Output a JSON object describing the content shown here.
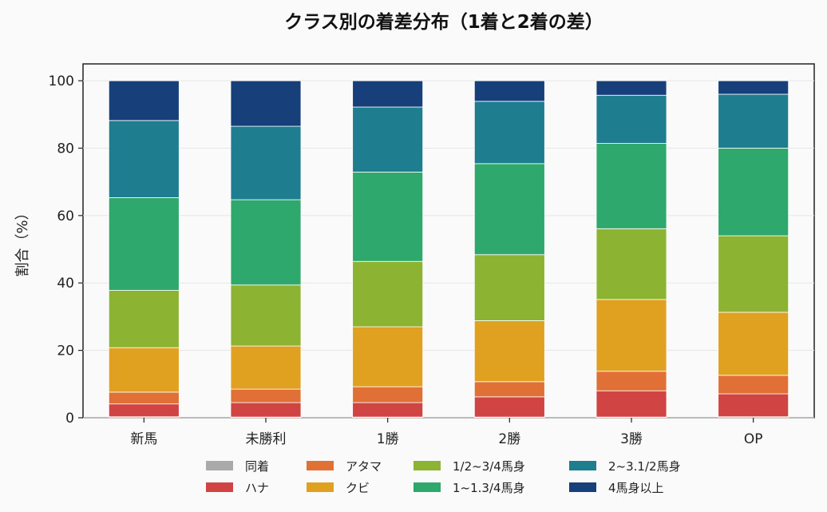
{
  "chart_data": {
    "type": "bar",
    "stacked": true,
    "title": "クラス別の着差分布（1着と2着の差）",
    "xlabel": "",
    "ylabel": "割合（%）",
    "ylim": [
      0,
      105
    ],
    "yticks": [
      0,
      20,
      40,
      60,
      80,
      100
    ],
    "grid": true,
    "legend_position": "bottom",
    "categories": [
      "新馬",
      "未勝利",
      "1勝",
      "2勝",
      "3勝",
      "OP"
    ],
    "series": [
      {
        "name": "同着",
        "color": "#aaaaaa",
        "values": [
          0.3,
          0.2,
          0.2,
          0.2,
          0.2,
          0.3
        ]
      },
      {
        "name": "ハナ",
        "color": "#d04444",
        "values": [
          3.8,
          4.3,
          4.3,
          6.0,
          7.8,
          6.8
        ]
      },
      {
        "name": "アタマ",
        "color": "#e07035",
        "values": [
          3.5,
          4.0,
          4.7,
          4.5,
          5.8,
          5.5
        ]
      },
      {
        "name": "クビ",
        "color": "#e0a020",
        "values": [
          13.2,
          12.8,
          17.8,
          18.1,
          21.3,
          18.7
        ]
      },
      {
        "name": "1/2~3/4馬身",
        "color": "#8db332",
        "values": [
          17.0,
          18.1,
          19.4,
          19.6,
          21.0,
          22.7
        ]
      },
      {
        "name": "1~1.3/4馬身",
        "color": "#2ea86c",
        "values": [
          27.5,
          25.3,
          26.5,
          27.0,
          25.3,
          26.0
        ]
      },
      {
        "name": "2~3.1/2馬身",
        "color": "#1e7d8e",
        "values": [
          22.9,
          21.8,
          19.3,
          18.5,
          14.3,
          16.0
        ]
      },
      {
        "name": "4馬身以上",
        "color": "#173f7a",
        "values": [
          11.8,
          13.5,
          7.8,
          6.1,
          4.3,
          4.0
        ]
      }
    ]
  }
}
